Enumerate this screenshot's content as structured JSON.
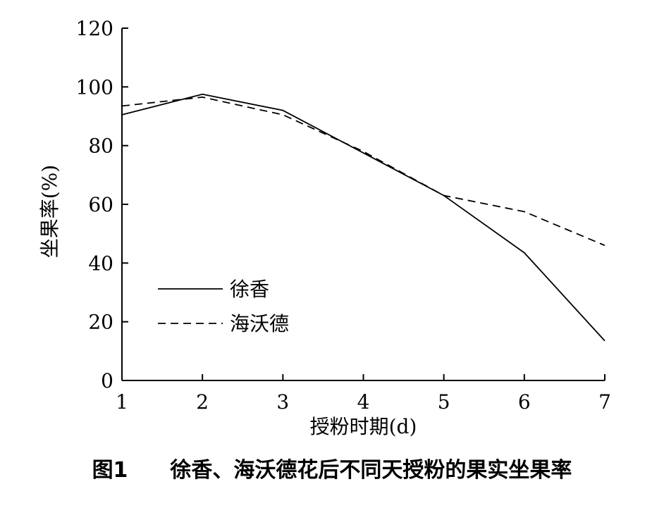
{
  "caption": "图1　　徐香、海沃德花后不同天授粉的果实坐果率",
  "chart_data": {
    "type": "line",
    "xlabel": "授粉时期(d)",
    "ylabel": "坐果率(%)",
    "x": [
      1,
      2,
      3,
      4,
      5,
      6,
      7
    ],
    "xlim": [
      1,
      7
    ],
    "ylim": [
      0,
      120
    ],
    "x_ticks": [
      "1",
      "2",
      "3",
      "4",
      "5",
      "6",
      "7"
    ],
    "y_ticks": [
      "0",
      "20",
      "40",
      "60",
      "80",
      "100",
      "120"
    ],
    "grid": false,
    "legend_position": "center-left",
    "series": [
      {
        "name": "徐香",
        "line_style": "solid",
        "color": "#000000",
        "values": [
          90.5,
          97.5,
          92.0,
          77.5,
          63.0,
          43.5,
          13.5
        ]
      },
      {
        "name": "海沃德",
        "line_style": "dashed",
        "color": "#000000",
        "values": [
          93.5,
          96.5,
          90.5,
          78.0,
          63.0,
          57.5,
          46.0
        ]
      }
    ]
  }
}
